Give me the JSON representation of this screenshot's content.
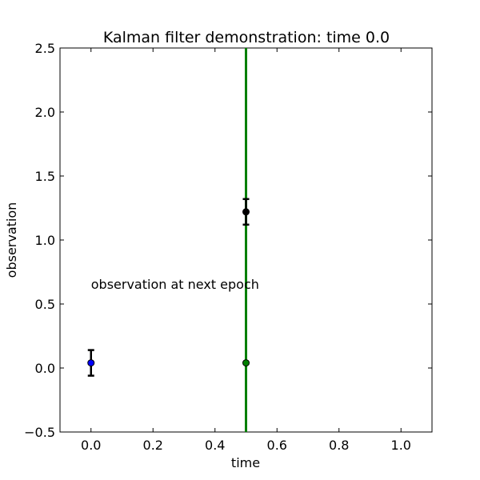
{
  "chart_data": {
    "type": "scatter",
    "title": "Kalman filter demonstration: time 0.0",
    "xlabel": "time",
    "ylabel": "observation",
    "xlim": [
      -0.1,
      1.1
    ],
    "ylim": [
      -0.5,
      2.5
    ],
    "x_ticks": [
      0.0,
      0.2,
      0.4,
      0.6,
      0.8,
      1.0
    ],
    "x_tick_labels": [
      "0.0",
      "0.2",
      "0.4",
      "0.6",
      "0.8",
      "1.0"
    ],
    "y_ticks": [
      -0.5,
      0.0,
      0.5,
      1.0,
      1.5,
      2.0,
      2.5
    ],
    "y_tick_labels": [
      "−0.5",
      "0.0",
      "0.5",
      "1.0",
      "1.5",
      "2.0",
      "2.5"
    ],
    "grid": false,
    "vline": {
      "x": 0.5,
      "color": "#008000"
    },
    "points": [
      {
        "x": 0.0,
        "y": 0.04,
        "yerr": 0.1,
        "color": "#0000ff",
        "errorbar": true
      },
      {
        "x": 0.5,
        "y": 1.22,
        "yerr": 0.1,
        "color": "#000000",
        "errorbar": true
      },
      {
        "x": 0.5,
        "y": 0.04,
        "color": "#008000",
        "errorbar": false
      }
    ],
    "annotations": [
      {
        "text": "observation at next epoch",
        "x": 0.0,
        "y": 0.62
      }
    ]
  }
}
